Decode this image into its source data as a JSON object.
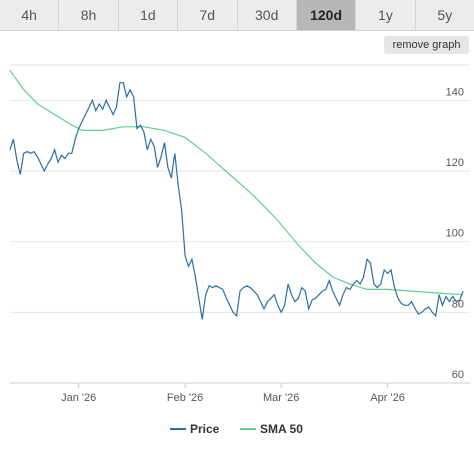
{
  "tabs": [
    {
      "label": "4h"
    },
    {
      "label": "8h"
    },
    {
      "label": "1d"
    },
    {
      "label": "7d"
    },
    {
      "label": "30d"
    },
    {
      "label": "120d"
    },
    {
      "label": "1y"
    },
    {
      "label": "5y"
    }
  ],
  "active_tab": "120d",
  "remove_graph_label": "remove graph",
  "colors": {
    "price": "#2b6ea3",
    "sma": "#5fd08e"
  },
  "chart_data": {
    "type": "line",
    "x_range": [
      "2025-12-12",
      "2026-04-25"
    ],
    "ylim": [
      60,
      150
    ],
    "y_ticks": [
      60,
      80,
      100,
      120,
      140
    ],
    "x_ticks": [
      {
        "date": "2026-01-01",
        "label": "Jan '26"
      },
      {
        "date": "2026-02-01",
        "label": "Feb '26"
      },
      {
        "date": "2026-03-01",
        "label": "Mar '26"
      },
      {
        "date": "2026-04-01",
        "label": "Apr '26"
      }
    ],
    "grid": true,
    "legend_position": "bottom-center",
    "series": [
      {
        "name": "Price",
        "points": [
          [
            "2025-12-12",
            126
          ],
          [
            "2025-12-13",
            129
          ],
          [
            "2025-12-14",
            123
          ],
          [
            "2025-12-15",
            119
          ],
          [
            "2025-12-16",
            125
          ],
          [
            "2025-12-17",
            125.5
          ],
          [
            "2025-12-18",
            125
          ],
          [
            "2025-12-19",
            125.5
          ],
          [
            "2025-12-20",
            124
          ],
          [
            "2025-12-21",
            122
          ],
          [
            "2025-12-22",
            120
          ],
          [
            "2025-12-23",
            122
          ],
          [
            "2025-12-24",
            123.5
          ],
          [
            "2025-12-25",
            126
          ],
          [
            "2025-12-26",
            122.5
          ],
          [
            "2025-12-27",
            124.5
          ],
          [
            "2025-12-28",
            123.5
          ],
          [
            "2025-12-29",
            125
          ],
          [
            "2025-12-30",
            125
          ],
          [
            "2025-12-31",
            129
          ],
          [
            "2026-01-01",
            132
          ],
          [
            "2026-01-02",
            134
          ],
          [
            "2026-01-03",
            136
          ],
          [
            "2026-01-04",
            138
          ],
          [
            "2026-01-05",
            140
          ],
          [
            "2026-01-06",
            137
          ],
          [
            "2026-01-07",
            139
          ],
          [
            "2026-01-08",
            137.5
          ],
          [
            "2026-01-09",
            140
          ],
          [
            "2026-01-10",
            138
          ],
          [
            "2026-01-11",
            136
          ],
          [
            "2026-01-12",
            138
          ],
          [
            "2026-01-13",
            145
          ],
          [
            "2026-01-14",
            145
          ],
          [
            "2026-01-15",
            141
          ],
          [
            "2026-01-16",
            143
          ],
          [
            "2026-01-17",
            141
          ],
          [
            "2026-01-18",
            132
          ],
          [
            "2026-01-19",
            133
          ],
          [
            "2026-01-20",
            131
          ],
          [
            "2026-01-21",
            126
          ],
          [
            "2026-01-22",
            129
          ],
          [
            "2026-01-23",
            127
          ],
          [
            "2026-01-24",
            121
          ],
          [
            "2026-01-25",
            124
          ],
          [
            "2026-01-26",
            128
          ],
          [
            "2026-01-27",
            121
          ],
          [
            "2026-01-28",
            118
          ],
          [
            "2026-01-29",
            125
          ],
          [
            "2026-01-30",
            116
          ],
          [
            "2026-01-31",
            109
          ],
          [
            "2026-02-01",
            96
          ],
          [
            "2026-02-02",
            93
          ],
          [
            "2026-02-03",
            95
          ],
          [
            "2026-02-04",
            90
          ],
          [
            "2026-02-05",
            84
          ],
          [
            "2026-02-06",
            78
          ],
          [
            "2026-02-07",
            85
          ],
          [
            "2026-02-08",
            87.5
          ],
          [
            "2026-02-09",
            87
          ],
          [
            "2026-02-10",
            87.5
          ],
          [
            "2026-02-11",
            87
          ],
          [
            "2026-02-12",
            86.5
          ],
          [
            "2026-02-13",
            84
          ],
          [
            "2026-02-14",
            82
          ],
          [
            "2026-02-15",
            80
          ],
          [
            "2026-02-16",
            79
          ],
          [
            "2026-02-17",
            86
          ],
          [
            "2026-02-18",
            87
          ],
          [
            "2026-02-19",
            87.5
          ],
          [
            "2026-02-20",
            87
          ],
          [
            "2026-02-21",
            86
          ],
          [
            "2026-02-22",
            85
          ],
          [
            "2026-02-23",
            83
          ],
          [
            "2026-02-24",
            81
          ],
          [
            "2026-02-25",
            83
          ],
          [
            "2026-02-26",
            84
          ],
          [
            "2026-02-27",
            85
          ],
          [
            "2026-02-28",
            82
          ],
          [
            "2026-03-01",
            80
          ],
          [
            "2026-03-02",
            82
          ],
          [
            "2026-03-03",
            88
          ],
          [
            "2026-03-04",
            85
          ],
          [
            "2026-03-05",
            83
          ],
          [
            "2026-03-06",
            84
          ],
          [
            "2026-03-07",
            87
          ],
          [
            "2026-03-08",
            86
          ],
          [
            "2026-03-09",
            81
          ],
          [
            "2026-03-10",
            83.5
          ],
          [
            "2026-03-11",
            84
          ],
          [
            "2026-03-12",
            85
          ],
          [
            "2026-03-13",
            86
          ],
          [
            "2026-03-14",
            86.5
          ],
          [
            "2026-03-15",
            89
          ],
          [
            "2026-03-16",
            86
          ],
          [
            "2026-03-17",
            84
          ],
          [
            "2026-03-18",
            82
          ],
          [
            "2026-03-19",
            85
          ],
          [
            "2026-03-20",
            87
          ],
          [
            "2026-03-21",
            86.5
          ],
          [
            "2026-03-22",
            88
          ],
          [
            "2026-03-23",
            89
          ],
          [
            "2026-03-24",
            88
          ],
          [
            "2026-03-25",
            90
          ],
          [
            "2026-03-26",
            95
          ],
          [
            "2026-03-27",
            94
          ],
          [
            "2026-03-28",
            88
          ],
          [
            "2026-03-29",
            87
          ],
          [
            "2026-03-30",
            88
          ],
          [
            "2026-03-31",
            92
          ],
          [
            "2026-04-01",
            91
          ],
          [
            "2026-04-02",
            92
          ],
          [
            "2026-04-03",
            87
          ],
          [
            "2026-04-04",
            84
          ],
          [
            "2026-04-05",
            82.5
          ],
          [
            "2026-04-06",
            82
          ],
          [
            "2026-04-07",
            82
          ],
          [
            "2026-04-08",
            83
          ],
          [
            "2026-04-09",
            81
          ],
          [
            "2026-04-10",
            79.5
          ],
          [
            "2026-04-11",
            80
          ],
          [
            "2026-04-12",
            81
          ],
          [
            "2026-04-13",
            81.5
          ],
          [
            "2026-04-14",
            80
          ],
          [
            "2026-04-15",
            79
          ],
          [
            "2026-04-16",
            85
          ],
          [
            "2026-04-17",
            82
          ],
          [
            "2026-04-18",
            84.5
          ],
          [
            "2026-04-19",
            83
          ],
          [
            "2026-04-20",
            84.5
          ],
          [
            "2026-04-21",
            83
          ],
          [
            "2026-04-22",
            83.5
          ],
          [
            "2026-04-23",
            86
          ]
        ]
      },
      {
        "name": "SMA 50",
        "points": [
          [
            "2025-12-12",
            148.5
          ],
          [
            "2025-12-16",
            143
          ],
          [
            "2025-12-20",
            139
          ],
          [
            "2025-12-25",
            136
          ],
          [
            "2025-12-30",
            133
          ],
          [
            "2026-01-02",
            131.5
          ],
          [
            "2026-01-08",
            131.5
          ],
          [
            "2026-01-14",
            132.5
          ],
          [
            "2026-01-20",
            132.5
          ],
          [
            "2026-01-26",
            131.5
          ],
          [
            "2026-02-01",
            129.5
          ],
          [
            "2026-02-07",
            125
          ],
          [
            "2026-02-14",
            119
          ],
          [
            "2026-02-21",
            113
          ],
          [
            "2026-02-28",
            106
          ],
          [
            "2026-03-06",
            99
          ],
          [
            "2026-03-11",
            94
          ],
          [
            "2026-03-16",
            90
          ],
          [
            "2026-03-21",
            88
          ],
          [
            "2026-03-26",
            86.5
          ],
          [
            "2026-04-01",
            86.5
          ],
          [
            "2026-04-08",
            86
          ],
          [
            "2026-04-15",
            85.5
          ],
          [
            "2026-04-23",
            85
          ]
        ]
      }
    ]
  }
}
